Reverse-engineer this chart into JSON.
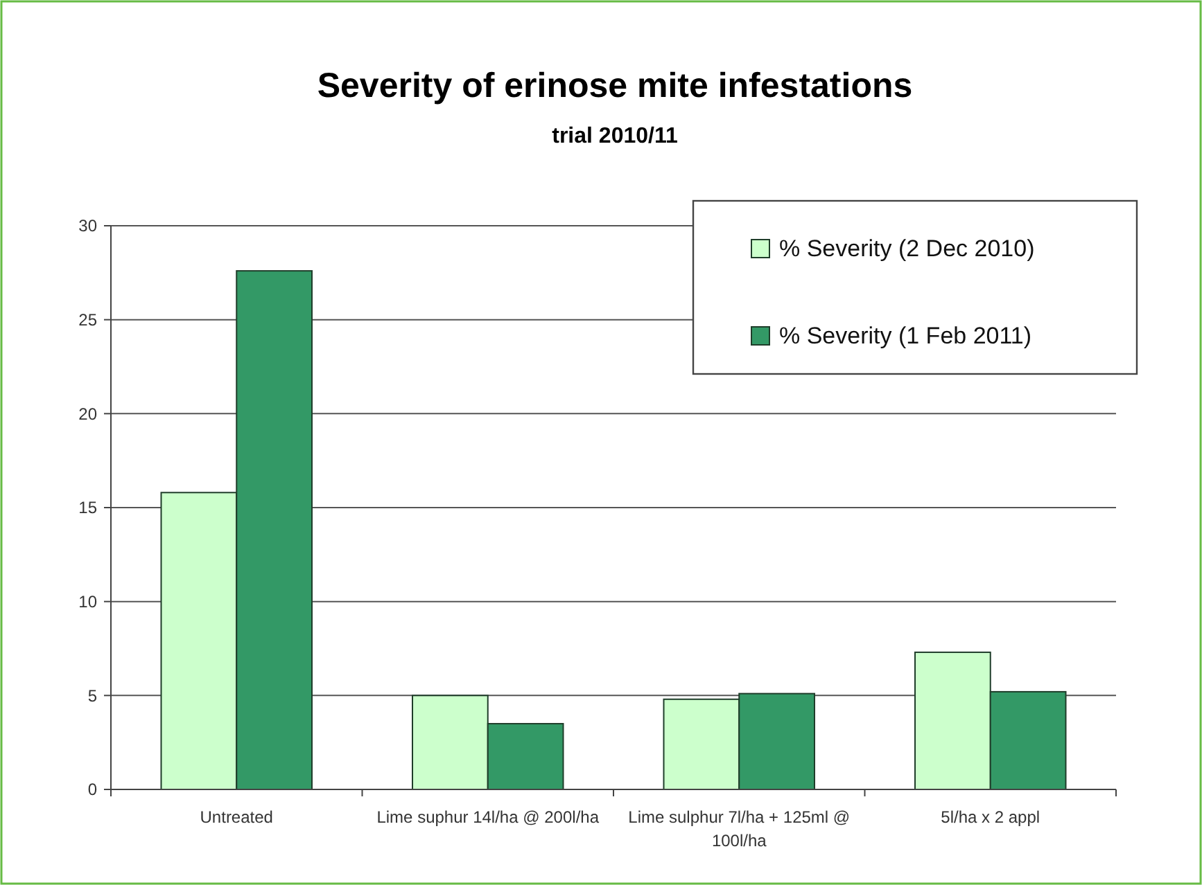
{
  "chart_data": {
    "type": "bar",
    "title": "Severity of erinose mite infestations",
    "subtitle": "trial 2010/11",
    "categories": [
      "Untreated",
      "Lime suphur 14l/ha @ 200l/ha",
      "Lime sulphur 7l/ha + 125ml @ 100l/ha",
      "5l/ha x 2 appl"
    ],
    "series": [
      {
        "name": "% Severity (2 Dec 2010)",
        "color": "#ccffcc",
        "values": [
          15.8,
          5.0,
          4.8,
          7.3
        ]
      },
      {
        "name": "% Severity (1 Feb 2011)",
        "color": "#339966",
        "values": [
          27.6,
          3.5,
          5.1,
          5.2
        ]
      }
    ],
    "ylim": [
      0,
      30
    ],
    "yticks": [
      0,
      5,
      10,
      15,
      20,
      25,
      30
    ],
    "grid": "y",
    "legend": "top right"
  }
}
